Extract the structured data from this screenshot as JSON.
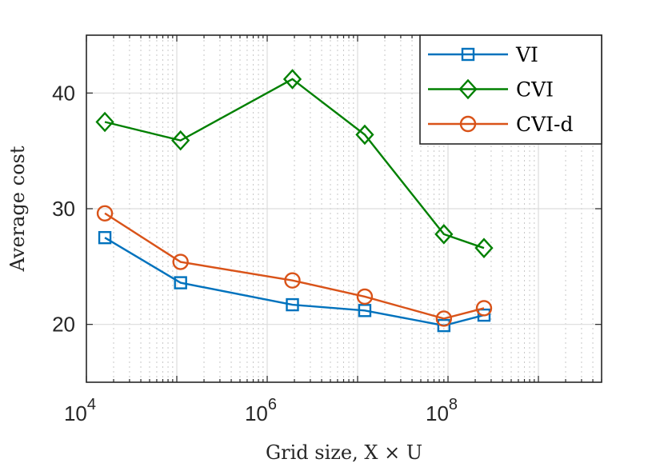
{
  "chart_data": {
    "type": "line",
    "xscale": "log",
    "xlim": [
      10000,
      5000000000
    ],
    "ylim": [
      15,
      45
    ],
    "xlabel": "Grid size, X × U",
    "ylabel": "Average cost",
    "title": "",
    "grid": true,
    "legend_position": "top-right",
    "x_ticks": [
      10000,
      1000000,
      100000000
    ],
    "x_tick_labels": [
      {
        "base": "10",
        "exp": "4"
      },
      {
        "base": "10",
        "exp": "6"
      },
      {
        "base": "10",
        "exp": "8"
      }
    ],
    "y_ticks": [
      20,
      30,
      40
    ],
    "y_tick_labels": [
      "20",
      "30",
      "40"
    ],
    "x": [
      16000,
      110000,
      1900000,
      12000000,
      90000000,
      250000000
    ],
    "series": [
      {
        "name": "VI",
        "color": "#0072BD",
        "marker": "square",
        "values": [
          27.5,
          23.6,
          21.7,
          21.2,
          19.9,
          20.8
        ]
      },
      {
        "name": "CVI",
        "color": "#008000",
        "marker": "diamond",
        "values": [
          37.5,
          35.9,
          41.2,
          36.4,
          27.8,
          26.6
        ]
      },
      {
        "name": "CVI-d",
        "color": "#D95319",
        "marker": "circle",
        "values": [
          29.6,
          25.4,
          23.8,
          22.4,
          20.5,
          21.4
        ]
      }
    ]
  }
}
